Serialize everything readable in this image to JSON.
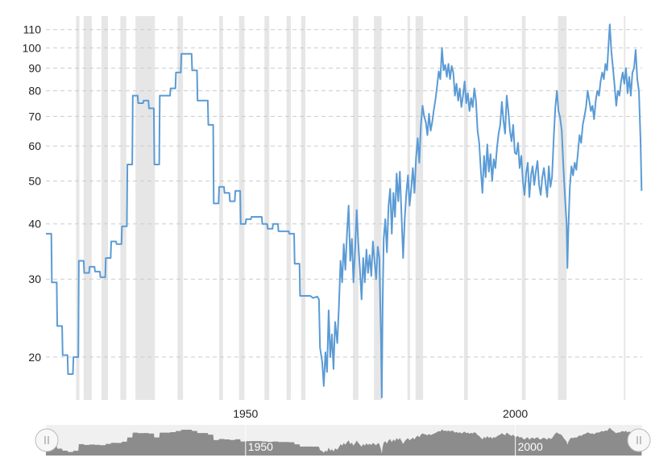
{
  "chart_data": {
    "type": "line",
    "title": "",
    "xlabel": "",
    "ylabel": "",
    "y_scale": "log",
    "ylim": [
      16,
      118
    ],
    "xlim": [
      1913,
      2023.5
    ],
    "y_ticks": [
      20,
      30,
      40,
      50,
      60,
      70,
      80,
      90,
      100,
      110
    ],
    "x_ticks": [
      1950,
      2000
    ],
    "grid": "horizontal dashed",
    "legend": "none",
    "line_color": "#5b9bd5",
    "band_color": "#e6e6e6",
    "recession_bands": [
      [
        1918.6,
        1919.2
      ],
      [
        1920.0,
        1921.5
      ],
      [
        1923.3,
        1924.5
      ],
      [
        1926.8,
        1927.9
      ],
      [
        1929.6,
        1933.2
      ],
      [
        1937.4,
        1938.4
      ],
      [
        1945.1,
        1945.8
      ],
      [
        1948.8,
        1949.8
      ],
      [
        1953.5,
        1954.4
      ],
      [
        1957.6,
        1958.4
      ],
      [
        1960.3,
        1961.1
      ],
      [
        1969.9,
        1970.9
      ],
      [
        1973.8,
        1975.2
      ],
      [
        1980.0,
        1980.5
      ],
      [
        1981.5,
        1982.9
      ],
      [
        1990.5,
        1991.2
      ],
      [
        2001.2,
        2001.9
      ],
      [
        2007.9,
        2009.5
      ],
      [
        2020.1,
        2020.3
      ]
    ],
    "series": [
      {
        "points": [
          [
            1913,
            38
          ],
          [
            1914,
            38
          ],
          [
            1914.1,
            29.5
          ],
          [
            1915,
            29.5
          ],
          [
            1915.1,
            23.5
          ],
          [
            1916,
            23.5
          ],
          [
            1916.1,
            20.2
          ],
          [
            1917,
            20.2
          ],
          [
            1917.1,
            18.3
          ],
          [
            1918,
            18.3
          ],
          [
            1918.1,
            20
          ],
          [
            1919,
            20
          ],
          [
            1919.1,
            33
          ],
          [
            1920,
            33
          ],
          [
            1920.1,
            31
          ],
          [
            1921,
            31
          ],
          [
            1921.1,
            32
          ],
          [
            1922,
            32
          ],
          [
            1922.1,
            31.2
          ],
          [
            1923,
            31.2
          ],
          [
            1923.1,
            30.3
          ],
          [
            1924,
            30.3
          ],
          [
            1924.1,
            33.5
          ],
          [
            1925,
            33.5
          ],
          [
            1925.1,
            36.5
          ],
          [
            1926,
            36.5
          ],
          [
            1926.1,
            36
          ],
          [
            1927,
            36
          ],
          [
            1927.1,
            39.5
          ],
          [
            1928,
            39.5
          ],
          [
            1928.1,
            54.5
          ],
          [
            1929,
            54.5
          ],
          [
            1929.1,
            78
          ],
          [
            1930,
            78
          ],
          [
            1930.1,
            75
          ],
          [
            1931,
            75
          ],
          [
            1931.1,
            76
          ],
          [
            1932,
            76
          ],
          [
            1932.1,
            73
          ],
          [
            1933,
            73
          ],
          [
            1933.1,
            54.5
          ],
          [
            1934,
            54.5
          ],
          [
            1934.1,
            78
          ],
          [
            1936,
            78
          ],
          [
            1936.1,
            81
          ],
          [
            1937,
            81
          ],
          [
            1937.1,
            88
          ],
          [
            1938,
            88
          ],
          [
            1938.1,
            97
          ],
          [
            1940,
            97
          ],
          [
            1940.1,
            89
          ],
          [
            1941,
            89
          ],
          [
            1941.1,
            76
          ],
          [
            1943,
            76
          ],
          [
            1943.1,
            67
          ],
          [
            1944,
            67
          ],
          [
            1944.1,
            44.5
          ],
          [
            1945,
            44.5
          ],
          [
            1945.1,
            48.5
          ],
          [
            1946,
            48.5
          ],
          [
            1946.1,
            47
          ],
          [
            1947,
            47
          ],
          [
            1947.1,
            45
          ],
          [
            1948,
            45
          ],
          [
            1948.1,
            47.5
          ],
          [
            1949,
            47.5
          ],
          [
            1949.1,
            40
          ],
          [
            1950,
            40
          ],
          [
            1950.1,
            41
          ],
          [
            1951,
            41
          ],
          [
            1951.1,
            41.5
          ],
          [
            1953,
            41.5
          ],
          [
            1953.1,
            40
          ],
          [
            1954,
            40
          ],
          [
            1954.1,
            39
          ],
          [
            1955,
            39
          ],
          [
            1955.1,
            40
          ],
          [
            1956,
            40
          ],
          [
            1956.1,
            38.5
          ],
          [
            1958,
            38.5
          ],
          [
            1958.1,
            38
          ],
          [
            1959,
            38
          ],
          [
            1959.1,
            32.5
          ],
          [
            1960,
            32.5
          ],
          [
            1960.1,
            27.5
          ],
          [
            1962,
            27.5
          ],
          [
            1962.5,
            27.2
          ],
          [
            1963.3,
            27.4
          ],
          [
            1963.6,
            27.0
          ],
          [
            1963.8,
            21
          ],
          [
            1964.2,
            19.5
          ],
          [
            1964.5,
            17.2
          ],
          [
            1964.8,
            20.5
          ],
          [
            1965.1,
            18.5
          ],
          [
            1965.4,
            25.5
          ],
          [
            1965.7,
            20
          ],
          [
            1966,
            22.5
          ],
          [
            1966.3,
            18.8
          ],
          [
            1966.6,
            24
          ],
          [
            1967,
            21.5
          ],
          [
            1967.3,
            26
          ],
          [
            1967.6,
            33
          ],
          [
            1967.9,
            29.5
          ],
          [
            1968.2,
            36
          ],
          [
            1968.5,
            31.5
          ],
          [
            1968.8,
            38
          ],
          [
            1969.1,
            44
          ],
          [
            1969.4,
            33
          ],
          [
            1969.7,
            37
          ],
          [
            1970,
            29.5
          ],
          [
            1970.3,
            35
          ],
          [
            1970.6,
            43
          ],
          [
            1970.9,
            36
          ],
          [
            1971.2,
            31.5
          ],
          [
            1971.5,
            27
          ],
          [
            1971.8,
            33.5
          ],
          [
            1972.1,
            29.5
          ],
          [
            1972.4,
            35
          ],
          [
            1972.7,
            31
          ],
          [
            1973,
            34
          ],
          [
            1973.3,
            30.5
          ],
          [
            1973.6,
            36.5
          ],
          [
            1973.9,
            33
          ],
          [
            1974.2,
            30
          ],
          [
            1974.5,
            35.5
          ],
          [
            1974.8,
            33.5
          ],
          [
            1975.1,
            22
          ],
          [
            1975.25,
            16.2
          ],
          [
            1975.4,
            26
          ],
          [
            1975.6,
            37
          ],
          [
            1975.9,
            41
          ],
          [
            1976.2,
            34.5
          ],
          [
            1976.5,
            44
          ],
          [
            1976.8,
            48
          ],
          [
            1977.1,
            38
          ],
          [
            1977.4,
            47
          ],
          [
            1977.7,
            41.5
          ],
          [
            1978,
            52
          ],
          [
            1978.3,
            45
          ],
          [
            1978.6,
            52.5
          ],
          [
            1978.9,
            42
          ],
          [
            1979.2,
            33.5
          ],
          [
            1979.5,
            41
          ],
          [
            1979.8,
            47
          ],
          [
            1980.1,
            51.5
          ],
          [
            1980.4,
            44
          ],
          [
            1980.7,
            48
          ],
          [
            1981,
            53.5
          ],
          [
            1981.3,
            47
          ],
          [
            1981.6,
            56.5
          ],
          [
            1981.9,
            62.5
          ],
          [
            1982.2,
            55
          ],
          [
            1982.5,
            67
          ],
          [
            1982.8,
            74
          ],
          [
            1983.1,
            70
          ],
          [
            1983.4,
            68
          ],
          [
            1983.7,
            63.5
          ],
          [
            1984,
            71
          ],
          [
            1984.3,
            65
          ],
          [
            1984.6,
            68
          ],
          [
            1984.9,
            72.5
          ],
          [
            1985.2,
            76.5
          ],
          [
            1985.5,
            82
          ],
          [
            1985.8,
            88.5
          ],
          [
            1986.1,
            85
          ],
          [
            1986.4,
            100
          ],
          [
            1986.7,
            89
          ],
          [
            1987,
            91.5
          ],
          [
            1987.3,
            86
          ],
          [
            1987.6,
            92
          ],
          [
            1987.9,
            85
          ],
          [
            1988.2,
            91
          ],
          [
            1988.5,
            88
          ],
          [
            1988.8,
            78
          ],
          [
            1989.1,
            83
          ],
          [
            1989.4,
            76
          ],
          [
            1989.7,
            81
          ],
          [
            1990,
            73.5
          ],
          [
            1990.3,
            78
          ],
          [
            1990.6,
            84
          ],
          [
            1990.9,
            75
          ],
          [
            1991.2,
            79
          ],
          [
            1991.5,
            72
          ],
          [
            1991.8,
            77
          ],
          [
            1992.1,
            73.5
          ],
          [
            1992.4,
            81
          ],
          [
            1992.7,
            76
          ],
          [
            1993,
            65
          ],
          [
            1993.3,
            61
          ],
          [
            1993.6,
            53
          ],
          [
            1993.9,
            47
          ],
          [
            1994.2,
            57
          ],
          [
            1994.5,
            51
          ],
          [
            1994.8,
            60.5
          ],
          [
            1995.1,
            52.5
          ],
          [
            1995.4,
            57.5
          ],
          [
            1995.7,
            50
          ],
          [
            1996,
            56
          ],
          [
            1996.3,
            53.5
          ],
          [
            1996.6,
            59.5
          ],
          [
            1996.9,
            64
          ],
          [
            1997.2,
            67
          ],
          [
            1997.5,
            75.5
          ],
          [
            1997.8,
            68.5
          ],
          [
            1998.1,
            64
          ],
          [
            1998.4,
            78
          ],
          [
            1998.7,
            72
          ],
          [
            1999,
            65
          ],
          [
            1999.3,
            61.5
          ],
          [
            1999.6,
            67
          ],
          [
            1999.9,
            58
          ],
          [
            2000.2,
            57.5
          ],
          [
            2000.5,
            61
          ],
          [
            2000.8,
            53.5
          ],
          [
            2001.1,
            57
          ],
          [
            2001.4,
            50
          ],
          [
            2001.7,
            46.5
          ],
          [
            2002,
            52
          ],
          [
            2002.3,
            55
          ],
          [
            2002.6,
            46
          ],
          [
            2002.9,
            51.5
          ],
          [
            2003.2,
            54
          ],
          [
            2003.5,
            49
          ],
          [
            2003.8,
            52.5
          ],
          [
            2004.1,
            55.5
          ],
          [
            2004.4,
            49
          ],
          [
            2004.7,
            46.5
          ],
          [
            2005,
            51
          ],
          [
            2005.3,
            53.5
          ],
          [
            2005.6,
            49.5
          ],
          [
            2005.9,
            46
          ],
          [
            2006.2,
            54
          ],
          [
            2006.5,
            48.5
          ],
          [
            2006.8,
            51
          ],
          [
            2007.1,
            62
          ],
          [
            2007.4,
            73
          ],
          [
            2007.7,
            80
          ],
          [
            2008,
            72
          ],
          [
            2008.3,
            69.5
          ],
          [
            2008.6,
            65
          ],
          [
            2008.9,
            54
          ],
          [
            2009.2,
            46
          ],
          [
            2009.5,
            40
          ],
          [
            2009.65,
            31.8
          ],
          [
            2009.8,
            38
          ],
          [
            2010.1,
            48.5
          ],
          [
            2010.4,
            54
          ],
          [
            2010.7,
            51.5
          ],
          [
            2011,
            55
          ],
          [
            2011.3,
            53
          ],
          [
            2011.6,
            58
          ],
          [
            2011.9,
            63.5
          ],
          [
            2012.2,
            61
          ],
          [
            2012.5,
            67
          ],
          [
            2012.8,
            70
          ],
          [
            2013.1,
            73.5
          ],
          [
            2013.4,
            80
          ],
          [
            2013.7,
            76
          ],
          [
            2014,
            72
          ],
          [
            2014.3,
            74
          ],
          [
            2014.6,
            69
          ],
          [
            2014.9,
            76
          ],
          [
            2015.2,
            80
          ],
          [
            2015.5,
            78
          ],
          [
            2015.8,
            84
          ],
          [
            2016.1,
            88
          ],
          [
            2016.4,
            85
          ],
          [
            2016.7,
            92
          ],
          [
            2017,
            89
          ],
          [
            2017.3,
            103
          ],
          [
            2017.5,
            113
          ],
          [
            2017.8,
            98
          ],
          [
            2018.1,
            90
          ],
          [
            2018.4,
            82
          ],
          [
            2018.7,
            74
          ],
          [
            2019,
            80
          ],
          [
            2019.3,
            78
          ],
          [
            2019.6,
            84
          ],
          [
            2019.9,
            88
          ],
          [
            2020.2,
            83
          ],
          [
            2020.5,
            90
          ],
          [
            2020.8,
            79
          ],
          [
            2021.1,
            86
          ],
          [
            2021.4,
            78
          ],
          [
            2021.7,
            88
          ],
          [
            2022,
            90
          ],
          [
            2022.3,
            99
          ],
          [
            2022.6,
            85
          ],
          [
            2022.9,
            80
          ],
          [
            2023.2,
            62
          ],
          [
            2023.4,
            47.5
          ]
        ]
      }
    ],
    "navigator": {
      "x_ticks": [
        1950,
        2000
      ]
    }
  }
}
